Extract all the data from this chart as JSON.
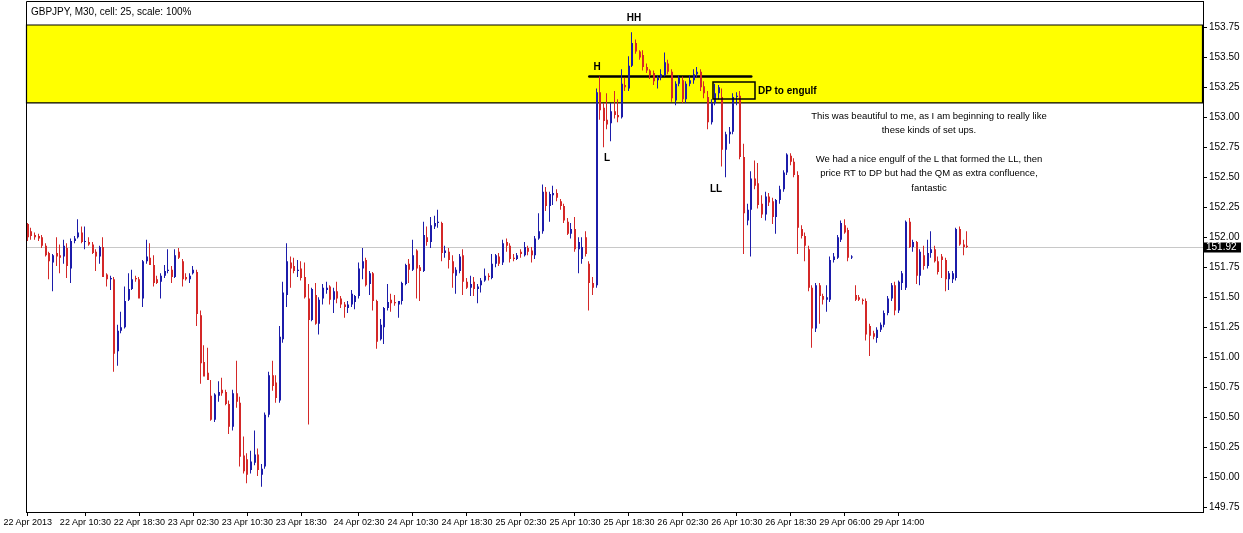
{
  "chart_data": {
    "type": "candlestick",
    "title": "GBPJPY, M30, cell: 25, scale: 100%",
    "categories": [
      "22 Apr 2013",
      null,
      null,
      null,
      null,
      null,
      null,
      null,
      null,
      null,
      null,
      null,
      null,
      null,
      null,
      null,
      "22 Apr 10:30",
      null,
      null,
      null,
      null,
      null,
      null,
      null,
      null,
      null,
      null,
      null,
      null,
      null,
      null,
      "22 Apr 18:30",
      null,
      null,
      null,
      null,
      null,
      null,
      null,
      null,
      null,
      null,
      null,
      null,
      null,
      null,
      "23 Apr 02:30",
      null,
      null,
      null,
      null,
      null,
      null,
      null,
      null,
      null,
      null,
      null,
      null,
      null,
      null,
      "23 Apr 10:30",
      null,
      null,
      null,
      null,
      null,
      null,
      null,
      null,
      null,
      null,
      null,
      null,
      null,
      null,
      "23 Apr 18:30",
      null,
      null,
      null,
      null,
      null,
      null,
      null,
      null,
      null,
      null,
      null,
      null,
      null,
      null,
      null,
      "24 Apr 02:30",
      null,
      null,
      null,
      null,
      null,
      null,
      null,
      null,
      null,
      null,
      null,
      null,
      null,
      null,
      "24 Apr 10:30",
      null,
      null,
      null,
      null,
      null,
      null,
      null,
      null,
      null,
      null,
      null,
      null,
      null,
      null,
      "24 Apr 18:30",
      null,
      null,
      null,
      null,
      null,
      null,
      null,
      null,
      null,
      null,
      null,
      null,
      null,
      null,
      "25 Apr 02:30",
      null,
      null,
      null,
      null,
      null,
      null,
      null,
      null,
      null,
      null,
      null,
      null,
      null,
      null,
      "25 Apr 10:30",
      null,
      null,
      null,
      null,
      null,
      null,
      null,
      null,
      null,
      null,
      null,
      null,
      null,
      null,
      "25 Apr 18:30",
      null,
      null,
      null,
      null,
      null,
      null,
      null,
      null,
      null,
      null,
      null,
      null,
      null,
      null,
      "26 Apr 02:30",
      null,
      null,
      null,
      null,
      null,
      null,
      null,
      null,
      null,
      null,
      null,
      null,
      null,
      null,
      "26 Apr 10:30",
      null,
      null,
      null,
      null,
      null,
      null,
      null,
      null,
      null,
      null,
      null,
      null,
      null,
      null,
      "26 Apr 18:30",
      null,
      null,
      null,
      null,
      null,
      null,
      null,
      null,
      null,
      null,
      null,
      null,
      null,
      null,
      "29 Apr 06:00",
      null,
      null,
      null,
      null,
      null,
      null,
      null,
      null,
      null,
      null,
      null,
      null,
      null,
      null,
      "29 Apr 14:00",
      null,
      null,
      null,
      null,
      null,
      null,
      null,
      null,
      null,
      null,
      null,
      null,
      null,
      null,
      null,
      null,
      null,
      null,
      null,
      null,
      null,
      null,
      null,
      null,
      null,
      null,
      null,
      null,
      null,
      null,
      null,
      null,
      null,
      null,
      null,
      null,
      null,
      null,
      null,
      null,
      null,
      null,
      null,
      null,
      null,
      null,
      null,
      null,
      null,
      null,
      null,
      null,
      null,
      null,
      null,
      null,
      null,
      null,
      null,
      null,
      null,
      null,
      null,
      null,
      null,
      null,
      null,
      null,
      null,
      null,
      null,
      null,
      null,
      null,
      null,
      null,
      null,
      null,
      null,
      null,
      null,
      null,
      null,
      null
    ],
    "ohlc": [
      [
        152.11,
        152.12,
        151.97,
        152.0
      ],
      [
        152.05,
        152.08,
        151.98,
        152.01
      ],
      [
        152.02,
        152.04,
        151.98,
        152.0
      ],
      [
        152.01,
        152.03,
        151.97,
        151.99
      ],
      [
        152.0,
        152.02,
        151.91,
        151.93
      ],
      [
        151.93,
        151.95,
        151.84,
        151.85
      ],
      [
        151.87,
        151.88,
        151.65,
        151.8
      ],
      [
        151.79,
        151.86,
        151.55,
        151.85
      ],
      [
        151.87,
        152.0,
        151.76,
        151.84
      ],
      [
        151.85,
        151.94,
        151.7,
        151.83
      ],
      [
        151.84,
        151.98,
        151.78,
        151.93
      ],
      [
        151.91,
        151.95,
        151.66,
        151.76
      ],
      [
        151.74,
        151.99,
        151.62,
        151.97
      ],
      [
        151.97,
        152.01,
        151.95,
        151.99
      ],
      [
        152.0,
        152.15,
        151.99,
        152.04
      ],
      [
        152.04,
        152.09,
        151.95,
        151.96
      ],
      [
        151.96,
        152.09,
        151.9,
        151.97
      ],
      [
        151.96,
        152.0,
        151.93,
        151.94
      ],
      [
        151.94,
        151.96,
        151.86,
        151.87
      ],
      [
        151.88,
        151.9,
        151.72,
        151.84
      ],
      [
        151.84,
        151.93,
        151.78,
        151.92
      ],
      [
        151.92,
        152.0,
        151.67,
        151.67
      ],
      [
        151.69,
        151.7,
        151.59,
        151.65
      ],
      [
        151.65,
        151.68,
        151.56,
        151.66
      ],
      [
        151.65,
        151.67,
        150.88,
        151.03
      ],
      [
        151.05,
        151.27,
        150.93,
        151.22
      ],
      [
        151.22,
        151.38,
        151.2,
        151.25
      ],
      [
        151.25,
        151.59,
        151.24,
        151.47
      ],
      [
        151.48,
        151.7,
        151.47,
        151.57
      ],
      [
        151.57,
        151.73,
        151.56,
        151.65
      ],
      [
        151.66,
        151.68,
        151.63,
        151.65
      ],
      [
        151.65,
        151.67,
        151.49,
        151.49
      ],
      [
        151.49,
        151.81,
        151.42,
        151.8
      ],
      [
        151.8,
        151.98,
        151.78,
        151.84
      ],
      [
        151.83,
        151.95,
        151.77,
        151.77
      ],
      [
        151.77,
        151.85,
        151.59,
        151.62
      ],
      [
        151.65,
        151.68,
        151.61,
        151.62
      ],
      [
        151.63,
        151.7,
        151.49,
        151.68
      ],
      [
        151.68,
        151.77,
        151.66,
        151.72
      ],
      [
        151.72,
        151.9,
        151.7,
        151.73
      ],
      [
        151.73,
        151.76,
        151.62,
        151.67
      ],
      [
        151.67,
        151.9,
        151.66,
        151.85
      ],
      [
        151.88,
        151.91,
        151.82,
        151.83
      ],
      [
        151.8,
        151.82,
        151.59,
        151.65
      ],
      [
        151.67,
        151.7,
        151.64,
        151.65
      ],
      [
        151.65,
        151.7,
        151.62,
        151.68
      ],
      [
        151.7,
        151.76,
        151.69,
        151.73
      ],
      [
        151.71,
        151.73,
        151.26,
        151.36
      ],
      [
        151.35,
        151.39,
        150.78,
        150.95
      ],
      [
        150.96,
        151.1,
        150.84,
        150.84
      ],
      [
        150.87,
        151.08,
        150.81,
        150.81
      ],
      [
        150.68,
        150.81,
        150.47,
        150.48
      ],
      [
        150.48,
        150.7,
        150.46,
        150.69
      ],
      [
        150.68,
        150.8,
        150.63,
        150.71
      ],
      [
        150.73,
        150.83,
        150.68,
        150.7
      ],
      [
        150.71,
        150.73,
        150.6,
        150.61
      ],
      [
        150.61,
        150.64,
        150.36,
        150.42
      ],
      [
        150.42,
        150.73,
        150.39,
        150.7
      ],
      [
        150.7,
        150.97,
        150.58,
        150.63
      ],
      [
        150.62,
        150.67,
        150.09,
        150.17
      ],
      [
        150.18,
        150.34,
        150.03,
        150.05
      ],
      [
        150.15,
        150.2,
        149.95,
        150.02
      ],
      [
        150.06,
        150.22,
        150.03,
        150.13
      ],
      [
        150.12,
        150.39,
        150.1,
        150.19
      ],
      [
        150.19,
        150.24,
        150.01,
        150.06
      ],
      [
        150.02,
        150.11,
        149.92,
        150.07
      ],
      [
        150.09,
        150.54,
        150.07,
        150.52
      ],
      [
        150.52,
        150.88,
        150.5,
        150.85
      ],
      [
        150.85,
        150.97,
        150.72,
        150.76
      ],
      [
        150.79,
        150.85,
        150.62,
        150.66
      ],
      [
        150.64,
        151.26,
        150.62,
        151.17
      ],
      [
        151.15,
        151.63,
        151.12,
        151.54
      ],
      [
        151.52,
        151.95,
        151.42,
        151.8
      ],
      [
        151.79,
        151.84,
        151.58,
        151.74
      ],
      [
        151.76,
        151.83,
        151.7,
        151.72
      ],
      [
        151.72,
        151.81,
        151.67,
        151.73
      ],
      [
        151.74,
        151.8,
        151.64,
        151.66
      ],
      [
        151.67,
        151.79,
        151.49,
        151.5
      ],
      [
        151.49,
        151.61,
        150.44,
        151.31
      ],
      [
        151.31,
        151.58,
        151.3,
        151.57
      ],
      [
        151.52,
        151.62,
        151.27,
        151.28
      ],
      [
        151.28,
        151.5,
        151.19,
        151.48
      ],
      [
        151.49,
        151.61,
        151.44,
        151.58
      ],
      [
        151.56,
        151.63,
        151.53,
        151.58
      ],
      [
        151.59,
        151.6,
        151.44,
        151.48
      ],
      [
        151.48,
        151.58,
        151.37,
        151.55
      ],
      [
        151.55,
        151.63,
        151.45,
        151.49
      ],
      [
        151.49,
        151.51,
        151.41,
        151.44
      ],
      [
        151.44,
        151.46,
        151.33,
        151.42
      ],
      [
        151.41,
        151.47,
        151.37,
        151.44
      ],
      [
        151.44,
        151.56,
        151.42,
        151.53
      ],
      [
        151.46,
        151.52,
        151.4,
        151.51
      ],
      [
        151.51,
        151.79,
        151.49,
        151.74
      ],
      [
        151.74,
        151.91,
        151.65,
        151.8
      ],
      [
        151.81,
        151.83,
        151.59,
        151.6
      ],
      [
        151.61,
        151.72,
        151.52,
        151.7
      ],
      [
        151.7,
        151.71,
        151.39,
        151.47
      ],
      [
        151.47,
        151.48,
        151.07,
        151.13
      ],
      [
        151.15,
        151.32,
        151.14,
        151.27
      ],
      [
        151.25,
        151.42,
        151.11,
        151.41
      ],
      [
        151.41,
        151.61,
        151.39,
        151.46
      ],
      [
        151.48,
        151.53,
        151.38,
        151.45
      ],
      [
        151.46,
        151.52,
        151.43,
        151.45
      ],
      [
        151.44,
        151.47,
        151.33,
        151.47
      ],
      [
        151.47,
        151.63,
        151.44,
        151.62
      ],
      [
        151.61,
        151.78,
        151.6,
        151.77
      ],
      [
        151.78,
        151.82,
        151.62,
        151.73
      ],
      [
        151.73,
        151.98,
        151.72,
        151.85
      ],
      [
        151.89,
        151.9,
        151.49,
        151.74
      ],
      [
        151.75,
        151.77,
        151.47,
        151.72
      ],
      [
        151.72,
        152.13,
        151.71,
        152.02
      ],
      [
        152.0,
        152.09,
        151.93,
        151.96
      ],
      [
        151.96,
        152.17,
        151.91,
        152.1
      ],
      [
        152.09,
        152.18,
        152.07,
        152.12
      ],
      [
        152.12,
        152.23,
        152.08,
        152.13
      ],
      [
        152.12,
        152.13,
        151.8,
        151.87
      ],
      [
        151.87,
        151.93,
        151.83,
        151.89
      ],
      [
        151.88,
        151.91,
        151.74,
        151.81
      ],
      [
        151.8,
        151.85,
        151.58,
        151.7
      ],
      [
        151.68,
        151.75,
        151.53,
        151.73
      ],
      [
        151.72,
        151.86,
        151.7,
        151.84
      ],
      [
        151.85,
        151.9,
        151.52,
        151.63
      ],
      [
        151.63,
        151.66,
        151.57,
        151.58
      ],
      [
        151.58,
        151.68,
        151.51,
        151.61
      ],
      [
        151.63,
        151.67,
        151.51,
        151.57
      ],
      [
        151.57,
        151.61,
        151.45,
        151.59
      ],
      [
        151.6,
        151.66,
        151.54,
        151.64
      ],
      [
        151.64,
        151.74,
        151.63,
        151.68
      ],
      [
        151.68,
        151.7,
        151.64,
        151.67
      ],
      [
        151.66,
        151.86,
        151.65,
        151.78
      ],
      [
        151.78,
        151.86,
        151.75,
        151.85
      ],
      [
        151.84,
        151.87,
        151.76,
        151.78
      ],
      [
        151.79,
        151.98,
        151.77,
        151.95
      ],
      [
        151.96,
        151.99,
        151.88,
        151.93
      ],
      [
        151.93,
        151.95,
        151.79,
        151.82
      ],
      [
        151.83,
        151.86,
        151.8,
        151.82
      ],
      [
        151.82,
        151.87,
        151.81,
        151.85
      ],
      [
        151.88,
        151.9,
        151.83,
        151.86
      ],
      [
        151.85,
        151.96,
        151.84,
        151.92
      ],
      [
        151.91,
        151.93,
        151.85,
        151.88
      ],
      [
        151.89,
        151.92,
        151.79,
        151.85
      ],
      [
        151.85,
        152.01,
        151.82,
        151.99
      ],
      [
        151.99,
        152.2,
        151.98,
        152.05
      ],
      [
        152.05,
        152.44,
        152.03,
        152.38
      ],
      [
        152.38,
        152.42,
        152.22,
        152.26
      ],
      [
        152.26,
        152.38,
        152.13,
        152.36
      ],
      [
        152.35,
        152.43,
        152.27,
        152.37
      ],
      [
        152.37,
        152.4,
        152.3,
        152.33
      ],
      [
        152.3,
        152.32,
        152.23,
        152.26
      ],
      [
        152.26,
        152.28,
        152.12,
        152.14
      ],
      [
        152.13,
        152.16,
        152.02,
        152.03
      ],
      [
        152.03,
        152.12,
        151.99,
        152.07
      ],
      [
        152.07,
        152.17,
        151.88,
        151.9
      ],
      [
        151.9,
        152.0,
        151.7,
        151.96
      ],
      [
        151.82,
        152.0,
        151.78,
        151.92
      ],
      [
        152.0,
        152.05,
        151.84,
        151.86
      ],
      [
        151.78,
        151.8,
        151.39,
        151.62
      ],
      [
        151.62,
        151.67,
        151.52,
        151.58
      ],
      [
        151.6,
        153.24,
        151.58,
        153.21
      ],
      [
        153.21,
        153.34,
        152.98,
        153.06
      ],
      [
        153.08,
        153.12,
        152.75,
        152.97
      ],
      [
        152.98,
        153.2,
        152.9,
        152.94
      ],
      [
        152.95,
        153.12,
        152.8,
        153.05
      ],
      [
        153.05,
        153.22,
        152.99,
        153.02
      ],
      [
        153.02,
        153.15,
        152.96,
        153.0
      ],
      [
        153.0,
        153.4,
        152.99,
        153.28
      ],
      [
        153.27,
        153.33,
        153.22,
        153.25
      ],
      [
        153.24,
        153.51,
        153.22,
        153.43
      ],
      [
        153.43,
        153.71,
        153.42,
        153.62
      ],
      [
        153.62,
        153.65,
        153.53,
        153.55
      ],
      [
        153.55,
        153.56,
        153.48,
        153.5
      ],
      [
        153.52,
        153.56,
        153.39,
        153.42
      ],
      [
        153.42,
        153.45,
        153.37,
        153.39
      ],
      [
        153.39,
        153.4,
        153.32,
        153.35
      ],
      [
        153.37,
        153.39,
        153.27,
        153.3
      ],
      [
        153.31,
        153.35,
        153.24,
        153.33
      ],
      [
        153.33,
        153.4,
        153.31,
        153.36
      ],
      [
        153.35,
        153.54,
        153.34,
        153.46
      ],
      [
        153.45,
        153.48,
        153.36,
        153.38
      ],
      [
        153.38,
        153.4,
        153.13,
        153.16
      ],
      [
        153.14,
        153.3,
        153.1,
        153.28
      ],
      [
        153.28,
        153.35,
        153.26,
        153.33
      ],
      [
        153.31,
        153.34,
        153.12,
        153.15
      ],
      [
        153.15,
        153.3,
        153.12,
        153.28
      ],
      [
        153.28,
        153.35,
        153.26,
        153.31
      ],
      [
        153.31,
        153.4,
        153.28,
        153.36
      ],
      [
        153.36,
        153.42,
        153.33,
        153.38
      ],
      [
        153.38,
        153.4,
        153.22,
        153.25
      ],
      [
        153.26,
        153.3,
        153.16,
        153.2
      ],
      [
        153.17,
        153.22,
        152.9,
        152.96
      ],
      [
        152.96,
        153.15,
        152.94,
        153.12
      ],
      [
        153.12,
        153.28,
        153.1,
        153.2
      ],
      [
        153.2,
        153.27,
        153.15,
        153.25
      ],
      [
        153.17,
        153.24,
        152.59,
        152.73
      ],
      [
        152.73,
        152.88,
        152.5,
        152.86
      ],
      [
        152.86,
        152.92,
        152.78,
        152.88
      ],
      [
        152.88,
        153.2,
        152.86,
        153.17
      ],
      [
        153.17,
        153.21,
        153.1,
        153.18
      ],
      [
        153.18,
        153.22,
        152.65,
        152.67
      ],
      [
        152.67,
        152.78,
        151.86,
        152.2
      ],
      [
        152.14,
        152.28,
        152.1,
        152.23
      ],
      [
        152.23,
        152.55,
        151.84,
        152.49
      ],
      [
        152.49,
        152.64,
        152.4,
        152.43
      ],
      [
        152.45,
        152.62,
        152.24,
        152.27
      ],
      [
        152.28,
        152.35,
        152.16,
        152.19
      ],
      [
        152.19,
        152.38,
        152.14,
        152.34
      ],
      [
        152.34,
        152.37,
        152.26,
        152.29
      ],
      [
        152.3,
        152.33,
        152.11,
        152.17
      ],
      [
        152.17,
        152.32,
        152.03,
        152.31
      ],
      [
        152.31,
        152.43,
        152.28,
        152.4
      ],
      [
        152.4,
        152.56,
        152.38,
        152.54
      ],
      [
        152.54,
        152.7,
        152.52,
        152.69
      ],
      [
        152.68,
        152.7,
        152.6,
        152.63
      ],
      [
        152.63,
        152.66,
        152.5,
        152.52
      ],
      [
        152.52,
        152.55,
        151.86,
        152.08
      ],
      [
        152.07,
        152.1,
        151.99,
        152.01
      ],
      [
        152.01,
        152.04,
        151.8,
        151.93
      ],
      [
        151.9,
        151.93,
        151.55,
        151.58
      ],
      [
        151.58,
        151.6,
        151.08,
        151.24
      ],
      [
        151.24,
        151.62,
        151.21,
        151.6
      ],
      [
        151.6,
        151.62,
        151.28,
        151.51
      ],
      [
        151.51,
        151.53,
        151.44,
        151.48
      ],
      [
        151.48,
        151.6,
        151.38,
        151.5
      ],
      [
        151.48,
        151.84,
        151.46,
        151.81
      ],
      [
        151.81,
        151.87,
        151.79,
        151.84
      ],
      [
        151.83,
        152.02,
        151.82,
        152.0
      ],
      [
        151.98,
        152.14,
        151.96,
        152.12
      ],
      [
        152.1,
        152.15,
        152.03,
        152.04
      ],
      [
        152.06,
        152.08,
        151.8,
        151.83
      ],
      [
        151.84,
        151.85,
        151.82,
        151.84
      ],
      [
        151.52,
        151.6,
        151.47,
        151.48
      ],
      [
        151.5,
        151.52,
        151.47,
        151.48
      ],
      [
        151.48,
        151.49,
        151.44,
        151.47
      ],
      [
        151.47,
        151.49,
        151.14,
        151.19
      ],
      [
        151.26,
        151.28,
        151.01,
        151.18
      ],
      [
        151.2,
        151.22,
        151.15,
        151.17
      ],
      [
        151.16,
        151.25,
        151.12,
        151.23
      ],
      [
        151.23,
        151.29,
        151.21,
        151.27
      ],
      [
        151.27,
        151.39,
        151.25,
        151.37
      ],
      [
        151.37,
        151.51,
        151.35,
        151.49
      ],
      [
        151.49,
        151.62,
        151.47,
        151.6
      ],
      [
        151.6,
        151.63,
        151.35,
        151.39
      ],
      [
        151.39,
        151.64,
        151.37,
        151.63
      ],
      [
        151.62,
        151.72,
        151.56,
        151.7
      ],
      [
        151.58,
        152.14,
        151.56,
        152.13
      ],
      [
        152.13,
        152.16,
        151.91,
        151.92
      ],
      [
        151.92,
        151.98,
        151.88,
        151.96
      ],
      [
        151.96,
        151.97,
        151.61,
        151.68
      ],
      [
        151.68,
        151.9,
        151.6,
        151.88
      ],
      [
        151.85,
        151.93,
        151.73,
        151.76
      ],
      [
        151.76,
        151.98,
        151.74,
        151.87
      ],
      [
        151.87,
        152.05,
        151.83,
        151.9
      ],
      [
        151.9,
        151.93,
        151.79,
        151.8
      ],
      [
        151.8,
        151.84,
        151.69,
        151.71
      ],
      [
        151.84,
        151.86,
        151.66,
        151.81
      ],
      [
        151.81,
        151.83,
        151.55,
        151.65
      ],
      [
        151.65,
        151.72,
        151.56,
        151.7
      ],
      [
        151.65,
        151.72,
        151.62,
        151.7
      ],
      [
        151.66,
        152.08,
        151.64,
        152.07
      ],
      [
        152.07,
        152.09,
        151.93,
        151.94
      ],
      [
        151.94,
        151.98,
        151.85,
        151.92
      ],
      [
        151.93,
        152.05,
        151.91,
        151.92
      ],
      null,
      null,
      null,
      null,
      null,
      null,
      null,
      null,
      null,
      null,
      null,
      null,
      null,
      null,
      null,
      null,
      null,
      null,
      null,
      null,
      null,
      null,
      null,
      null,
      null,
      null,
      null,
      null,
      null,
      null,
      null,
      null,
      null,
      null,
      null,
      null,
      null,
      null,
      null,
      null,
      null,
      null,
      null,
      null,
      null,
      null,
      null,
      null,
      null,
      null,
      null,
      null,
      null,
      null,
      null,
      null,
      null,
      null,
      null,
      null,
      null,
      null,
      null,
      null,
      null
    ],
    "colors": [
      "#d42828",
      "#d42828",
      "#d42828",
      "#d42828",
      "#d42828",
      "#d42828",
      "#d42828",
      "#1c1caa",
      "#d42828",
      "#d42828",
      "#1c1caa",
      "#d42828",
      "#1c1caa",
      "#1c1caa",
      "#1c1caa",
      "#d42828",
      "#1c1caa",
      "#d42828",
      "#d42828",
      "#d42828",
      "#1c1caa",
      "#d42828",
      "#d42828",
      "#1c1caa",
      "#d42828",
      "#1c1caa",
      "#1c1caa",
      "#1c1caa",
      "#1c1caa",
      "#1c1caa",
      "#d42828",
      "#d42828",
      "#1c1caa",
      "#1c1caa",
      "#d42828",
      "#d42828",
      "#d42828",
      "#1c1caa",
      "#1c1caa",
      "#1c1caa",
      "#d42828",
      "#1c1caa",
      "#d42828",
      "#d42828",
      "#d42828",
      "#1c1caa",
      "#1c1caa",
      "#d42828",
      "#d42828",
      "#d42828",
      "#d42828",
      "#d42828",
      "#1c1caa",
      "#1c1caa",
      "#d42828",
      "#d42828",
      "#d42828",
      "#1c1caa",
      "#d42828",
      "#d42828",
      "#d42828",
      "#d42828",
      "#1c1caa",
      "#1c1caa",
      "#d42828",
      "#1c1caa",
      "#1c1caa",
      "#1c1caa",
      "#d42828",
      "#d42828",
      "#1c1caa",
      "#1c1caa",
      "#1c1caa",
      "#d42828",
      "#d42828",
      "#1c1caa",
      "#d42828",
      "#d42828",
      "#d42828",
      "#1c1caa",
      "#d42828",
      "#1c1caa",
      "#1c1caa",
      "#1c1caa",
      "#d42828",
      "#1c1caa",
      "#d42828",
      "#d42828",
      "#d42828",
      "#1c1caa",
      "#1c1caa",
      "#1c1caa",
      "#1c1caa",
      "#1c1caa",
      "#d42828",
      "#1c1caa",
      "#d42828",
      "#d42828",
      "#1c1caa",
      "#1c1caa",
      "#1c1caa",
      "#d42828",
      "#d42828",
      "#1c1caa",
      "#1c1caa",
      "#1c1caa",
      "#d42828",
      "#1c1caa",
      "#d42828",
      "#d42828",
      "#1c1caa",
      "#d42828",
      "#1c1caa",
      "#1c1caa",
      "#1c1caa",
      "#d42828",
      "#1c1caa",
      "#d42828",
      "#d42828",
      "#1c1caa",
      "#1c1caa",
      "#d42828",
      "#d42828",
      "#1c1caa",
      "#d42828",
      "#1c1caa",
      "#1c1caa",
      "#1c1caa",
      "#d42828",
      "#1c1caa",
      "#1c1caa",
      "#d42828",
      "#1c1caa",
      "#d42828",
      "#d42828",
      "#d42828",
      "#1c1caa",
      "#d42828",
      "#1c1caa",
      "#d42828",
      "#d42828",
      "#1c1caa",
      "#1c1caa",
      "#1c1caa",
      "#d42828",
      "#1c1caa",
      "#1c1caa",
      "#d42828",
      "#d42828",
      "#d42828",
      "#d42828",
      "#1c1caa",
      "#d42828",
      "#1c1caa",
      "#1c1caa",
      "#d42828",
      "#d42828",
      "#d42828",
      "#1c1caa",
      "#d42828",
      "#d42828",
      "#d42828",
      "#1c1caa",
      "#d42828",
      "#d42828",
      "#1c1caa",
      "#d42828",
      "#1c1caa",
      "#1c1caa",
      "#d42828",
      "#d42828",
      "#d42828",
      "#d42828",
      "#d42828",
      "#d42828",
      "#1c1caa",
      "#1c1caa",
      "#1c1caa",
      "#d42828",
      "#d42828",
      "#1c1caa",
      "#1c1caa",
      "#d42828",
      "#1c1caa",
      "#1c1caa",
      "#1c1caa",
      "#1c1caa",
      "#d42828",
      "#d42828",
      "#d42828",
      "#1c1caa",
      "#1c1caa",
      "#1c1caa",
      "#d42828",
      "#1c1caa",
      "#1c1caa",
      "#1c1caa",
      "#1c1caa",
      "#d42828",
      "#d42828",
      "#1c1caa",
      "#1c1caa",
      "#d42828",
      "#d42828",
      "#d42828",
      "#1c1caa",
      "#d42828",
      "#d42828",
      "#1c1caa",
      "#1c1caa",
      "#1c1caa",
      "#1c1caa",
      "#d42828",
      "#d42828",
      "#d42828",
      "#d42828",
      "#d42828",
      "#d42828",
      "#d42828",
      "#1c1caa",
      "#d42828",
      "#d42828",
      "#1c1caa",
      "#1c1caa",
      "#1c1caa",
      "#1c1caa",
      "#1c1caa",
      "#d42828",
      "#d42828",
      "#1c1caa",
      "#d42828",
      "#d42828",
      "#d42828",
      "#d42828",
      "#d42828",
      "#d42828",
      "#1c1caa",
      "#1c1caa",
      "#1c1caa",
      "#1c1caa",
      "#1c1caa",
      "#d42828",
      "#1c1caa",
      "#1c1caa",
      "#1c1caa",
      "#d42828",
      "#1c1caa",
      "#d42828",
      "#1c1caa",
      "#d42828",
      "#1c1caa",
      "#1c1caa",
      "#d42828",
      "#d42828",
      "#d42828",
      "#d42828",
      "#1c1caa",
      "#1c1caa",
      "#1c1caa",
      "#d42828",
      "#d42828",
      "#d42828",
      null,
      null,
      null,
      null,
      null,
      null,
      null,
      null,
      null,
      null,
      null,
      null,
      null,
      null,
      null,
      null,
      null,
      null,
      null,
      null,
      null,
      null,
      null,
      null,
      null,
      null,
      null,
      null,
      null,
      null,
      null,
      null,
      null,
      null,
      null,
      null,
      null,
      null,
      null,
      null,
      null,
      null,
      null,
      null,
      null,
      null,
      null,
      null,
      null,
      null,
      null,
      null,
      null,
      null,
      null,
      null,
      null,
      null,
      null,
      null,
      null,
      null,
      null,
      null,
      null
    ],
    "series": [
      {
        "type": "line",
        "color": "#000000",
        "values": [
          null,
          null,
          null,
          null,
          null,
          null,
          null,
          null,
          null,
          null,
          null,
          null,
          null,
          null,
          null,
          null,
          null,
          null,
          null,
          null,
          null,
          null,
          null,
          null,
          null,
          null,
          null,
          null,
          null,
          null,
          null,
          null,
          null,
          null,
          null,
          null,
          null,
          null,
          null,
          null,
          null,
          null,
          null,
          null,
          null,
          null,
          null,
          null,
          null,
          null,
          null,
          null,
          null,
          null,
          null,
          null,
          null,
          null,
          null,
          null,
          null,
          null,
          null,
          null,
          null,
          null,
          null,
          null,
          null,
          null,
          null,
          null,
          null,
          null,
          null,
          null,
          null,
          null,
          null,
          null,
          null,
          null,
          null,
          null,
          null,
          null,
          null,
          null,
          null,
          null,
          null,
          null,
          null,
          null,
          null,
          null,
          null,
          null,
          null,
          null,
          null,
          null,
          null,
          null,
          null,
          null,
          null,
          null,
          null,
          null,
          null,
          null,
          null,
          null,
          null,
          null,
          null,
          null,
          null,
          null,
          null,
          null,
          null,
          null,
          null,
          null,
          null,
          null,
          null,
          null,
          null,
          null,
          null,
          null,
          null,
          null,
          null,
          null,
          null,
          null,
          null,
          null,
          null,
          null,
          null,
          null,
          null,
          null,
          null,
          null,
          null,
          null,
          null,
          null,
          null,
          null,
          153.34,
          null,
          null,
          null,
          null,
          null,
          null,
          null,
          null,
          null,
          null,
          null,
          null,
          null,
          null,
          null,
          null,
          null,
          null,
          null,
          null,
          null,
          null,
          null,
          null,
          null,
          null,
          null,
          null,
          null,
          null,
          null,
          null,
          null,
          null,
          null,
          null,
          null,
          null,
          null,
          null,
          null,
          null,
          null,
          null,
          153.34,
          null,
          null,
          null,
          null,
          null,
          null,
          null,
          null,
          null,
          null,
          null,
          null,
          null,
          null,
          null,
          null,
          null,
          null,
          null,
          null,
          null,
          null,
          null,
          null,
          null,
          null,
          null,
          null,
          null,
          null,
          null,
          null,
          null,
          null,
          null,
          null,
          null,
          null,
          null,
          null,
          null,
          null,
          null,
          null,
          null,
          null,
          null,
          null,
          null,
          null,
          null,
          null,
          null,
          null,
          null,
          null,
          null,
          null,
          null,
          null,
          null,
          null,
          null,
          null,
          null,
          null,
          null,
          null,
          null,
          null,
          null,
          null,
          null,
          null,
          null,
          null,
          null,
          null,
          null,
          null,
          null,
          null,
          null,
          null,
          null,
          null,
          null,
          null,
          null,
          null,
          null,
          null,
          null,
          null,
          null,
          null,
          null,
          null,
          null,
          null,
          null,
          null,
          null,
          null,
          null,
          null,
          null,
          null,
          null,
          null,
          null,
          null,
          null,
          null,
          null,
          null,
          null,
          null,
          null,
          null,
          null,
          null,
          null,
          null,
          null
        ]
      }
    ],
    "ylim": [
      149.71,
      153.97
    ],
    "yticks": [
      {
        "value": 149.75,
        "label": "149.75"
      },
      {
        "value": 150,
        "label": "150.00"
      },
      {
        "value": 150.25,
        "label": "150.25"
      },
      {
        "value": 150.5,
        "label": "150.50"
      },
      {
        "value": 150.75,
        "label": "150.75"
      },
      {
        "value": 151,
        "label": "151.00"
      },
      {
        "value": 151.25,
        "label": "151.25"
      },
      {
        "value": 151.5,
        "label": "151.50"
      },
      {
        "value": 151.75,
        "label": "151.75"
      },
      {
        "value": 152,
        "label": "152.00"
      },
      {
        "value": 152.25,
        "label": "152.25"
      },
      {
        "value": 152.5,
        "label": "152.50"
      },
      {
        "value": 152.75,
        "label": "152.75"
      },
      {
        "value": 153,
        "label": "153.00"
      },
      {
        "value": 153.25,
        "label": "153.25"
      },
      {
        "value": 153.5,
        "label": "153.50"
      },
      {
        "value": 153.75,
        "label": "153.75"
      }
    ],
    "bands": [
      {
        "axis": "y",
        "from": 153.12,
        "to": 153.77,
        "color": "#ffff00"
      }
    ],
    "ref_lines": [
      {
        "axis": "y",
        "value": 151.92,
        "label": "151.92",
        "color": "#c8c8c8"
      }
    ],
    "annotations": [
      "H",
      "HH",
      "L",
      "LL",
      "DP to engulf",
      "This was beautiful to me, as I am beginning to really like these kinds of set ups.",
      "We had a nice engulf of the L that formed the LL, then price RT to DP but had the QM as extra confluence, fantastic"
    ]
  }
}
